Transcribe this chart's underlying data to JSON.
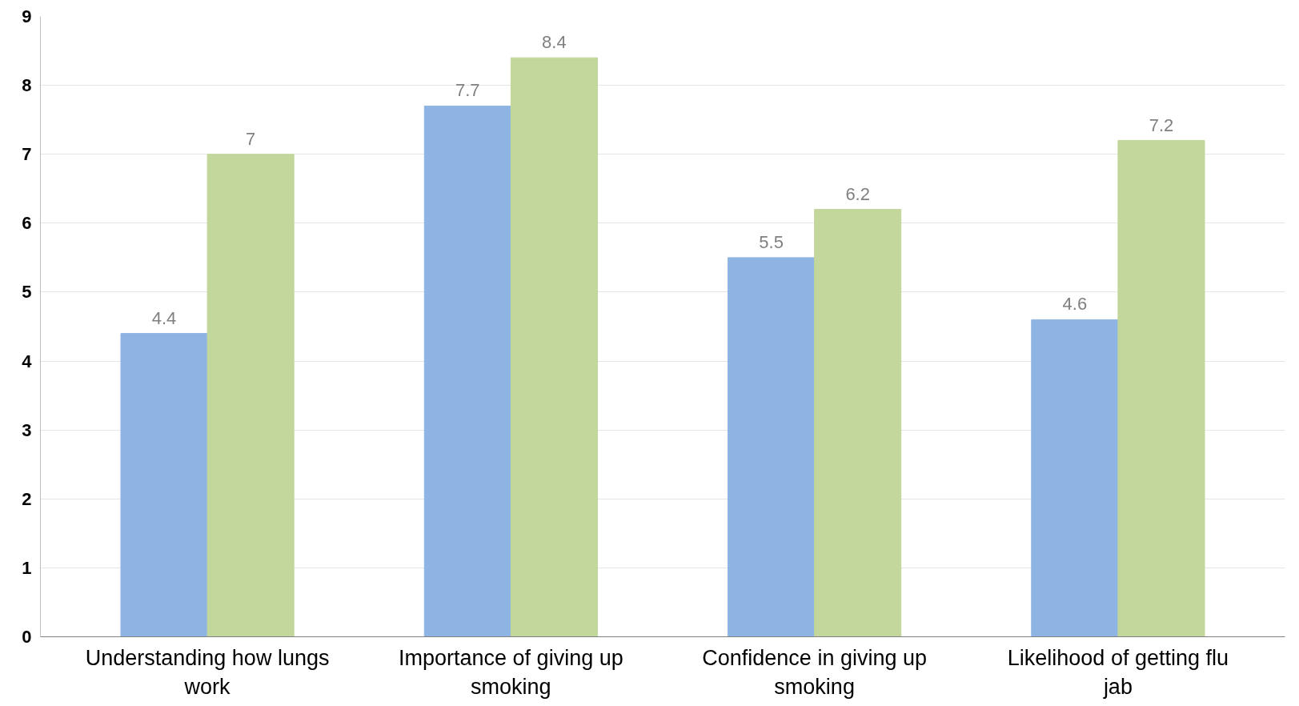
{
  "chart_data": {
    "type": "bar",
    "categories": [
      "Understanding how lungs work",
      "Importance of giving up smoking",
      "Confidence in giving up smoking",
      "Likelihood of getting flu jab"
    ],
    "series": [
      {
        "color": "#8eb4e3",
        "values": [
          4.4,
          7.7,
          5.5,
          4.6
        ]
      },
      {
        "color": "#c3d69b",
        "values": [
          7,
          8.4,
          6.2,
          7.2
        ]
      }
    ],
    "ylim": [
      0,
      9
    ],
    "yticks": [
      0,
      1,
      2,
      3,
      4,
      5,
      6,
      7,
      8,
      9
    ],
    "grid": "y",
    "data_labels": true
  }
}
